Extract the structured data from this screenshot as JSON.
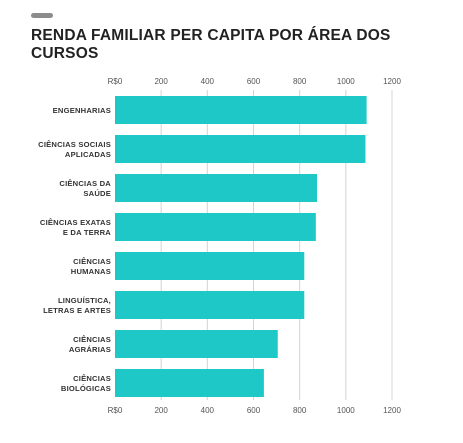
{
  "chart_data": {
    "type": "bar",
    "orientation": "horizontal",
    "title": "RENDA FAMILIAR PER CAPITA POR ÁREA DOS CURSOS",
    "categories": [
      [
        "ENGENHARIAS"
      ],
      [
        "CIÊNCIAS SOCIAIS",
        "APLICADAS"
      ],
      [
        "CIÊNCIAS DA",
        "SAÚDE"
      ],
      [
        "CIÊNCIAS EXATAS",
        "E DA TERRA"
      ],
      [
        "CIÊNCIAS",
        "HUMANAS"
      ],
      [
        "LINGUÍSTICA,",
        "LETRAS E ARTES"
      ],
      [
        "CIÊNCIAS",
        "AGRÁRIAS"
      ],
      [
        "CIÊNCIAS",
        "BIOLÓGICAS"
      ]
    ],
    "values": [
      1090,
      1085,
      875,
      870,
      820,
      820,
      705,
      645
    ],
    "xlim": [
      0,
      1200
    ],
    "ticks": [
      "R$0",
      "200",
      "400",
      "600",
      "800",
      "1000",
      "1200"
    ],
    "grid": true,
    "bar_color": "#1ec8c6",
    "grid_color": "#d4d4d4"
  }
}
